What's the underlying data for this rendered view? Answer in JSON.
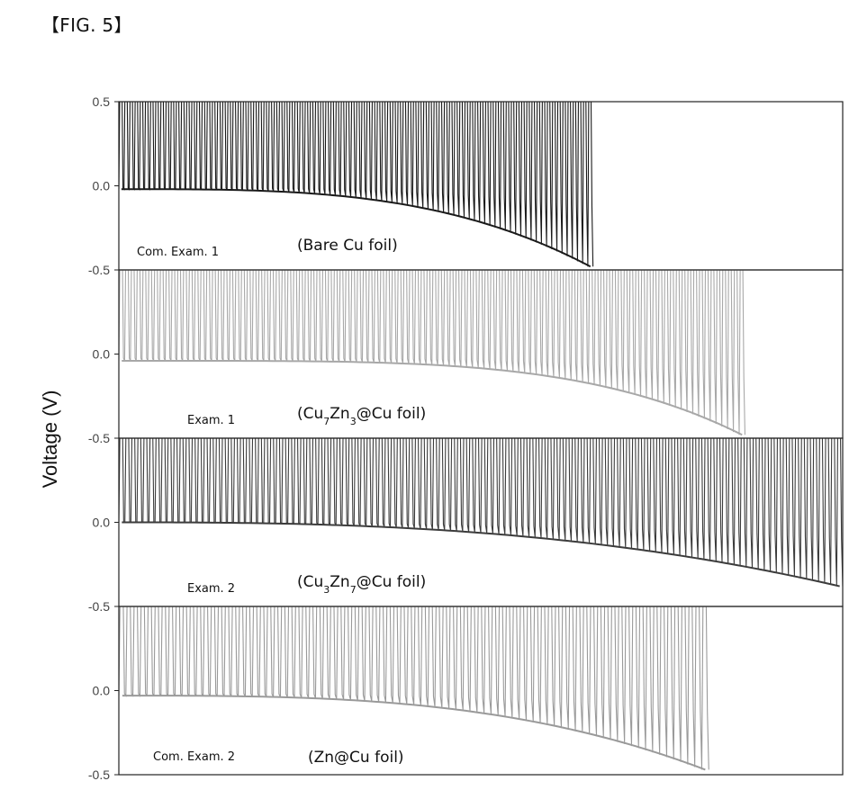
{
  "figure_label": "【FIG. 5】",
  "chart_data": {
    "type": "line",
    "ylabel": "Voltage (V)",
    "xlabel": "",
    "ylim": [
      -0.5,
      0.5
    ],
    "yticks": [
      "0.5",
      "0.0",
      "-0.5"
    ],
    "grid": false,
    "panels": [
      {
        "tag": "Com. Exam. 1",
        "desc": {
          "pre": "(Bare Cu foil)"
        },
        "color": "#1a1a1a",
        "cycles": 92,
        "end_fraction": 0.655,
        "low_start": -0.02,
        "low_end": -0.48,
        "low_curve": 3.2,
        "high_end": 0.5
      },
      {
        "tag": "Exam. 1",
        "desc": {
          "pre": "(Cu",
          "sub1": "7",
          "mid": "Zn",
          "sub2": "3",
          "post": "@Cu foil)"
        },
        "color": "#a8a8a8",
        "cycles": 108,
        "end_fraction": 0.865,
        "low_start": -0.04,
        "low_end": -0.48,
        "low_curve": 4.2,
        "high_end": 0.5
      },
      {
        "tag": "Exam. 2",
        "desc": {
          "pre": "(Cu",
          "sub1": "3",
          "mid": "Zn",
          "sub2": "7",
          "post": "@Cu foil)"
        },
        "color": "#3c3c3c",
        "cycles": 120,
        "end_fraction": 1.0,
        "low_start": 0.0,
        "low_end": -0.38,
        "low_curve": 2.6,
        "high_end": 0.5
      },
      {
        "tag": "Com. Exam. 2",
        "desc": {
          "pre": "(Zn@Cu foil)"
        },
        "color": "#9a9a9a",
        "cycles": 84,
        "end_fraction": 0.815,
        "low_start": -0.03,
        "low_end": -0.47,
        "low_curve": 3.0,
        "high_end": 0.5
      }
    ]
  }
}
